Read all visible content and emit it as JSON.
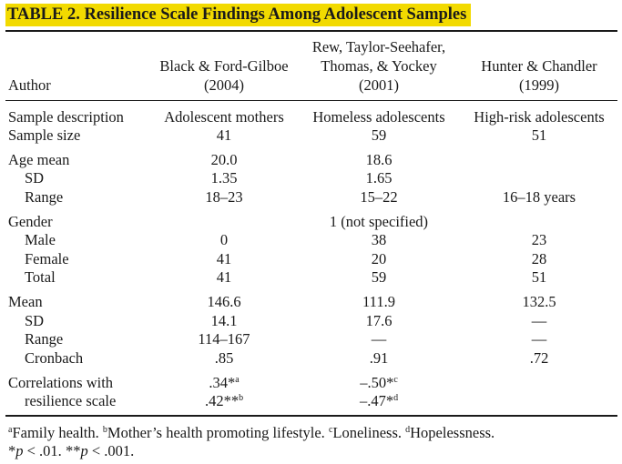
{
  "table": {
    "title": "TABLE 2.  Resilience Scale Findings Among Adolescent Samples",
    "header": {
      "author": "Author",
      "col1_l1": "Black & Ford-Gilboe",
      "col1_l2": "(2004)",
      "col2_l1": "Rew, Taylor-Seehafer,",
      "col2_l2": "Thomas, & Yockey",
      "col2_l3": "(2001)",
      "col3_l1": "Hunter & Chandler",
      "col3_l2": "(1999)"
    },
    "rows": {
      "sample_description": {
        "label": "Sample description",
        "c1": "Adolescent mothers",
        "c2": "Homeless adolescents",
        "c3": "High-risk adolescents"
      },
      "sample_size": {
        "label": "Sample size",
        "c1": "41",
        "c2": "59",
        "c3": "51"
      },
      "age_mean": {
        "label": "Age mean",
        "c1": "20.0",
        "c2": "18.6",
        "c3": ""
      },
      "age_sd": {
        "label": "SD",
        "c1": "1.35",
        "c2": "1.65",
        "c3": ""
      },
      "age_range": {
        "label": "Range",
        "c1": "18–23",
        "c2": "15–22",
        "c3": "16–18 years"
      },
      "gender": {
        "label": "Gender",
        "c1": "",
        "c2": "1 (not specified)",
        "c3": ""
      },
      "male": {
        "label": "Male",
        "c1": "0",
        "c2": "38",
        "c3": "23"
      },
      "female": {
        "label": "Female",
        "c1": "41",
        "c2": "20",
        "c3": "28"
      },
      "total": {
        "label": "Total",
        "c1": "41",
        "c2": "59",
        "c3": "51"
      },
      "mean": {
        "label": "Mean",
        "c1": "146.6",
        "c2": "111.9",
        "c3": "132.5"
      },
      "mean_sd": {
        "label": "SD",
        "c1": "14.1",
        "c2": "17.6",
        "c3": "—"
      },
      "mean_range": {
        "label": "Range",
        "c1": "114–167",
        "c2": "—",
        "c3": "—"
      },
      "cronbach": {
        "label": "Cronbach",
        "c1": ".85",
        "c2": ".91",
        "c3": ".72"
      },
      "correlations": {
        "label": "Correlations with",
        "c1": ".34*",
        "c1_sup": "a",
        "c2": "–.50*",
        "c2_sup": "c"
      },
      "resilience": {
        "label": "resilience scale",
        "c1": ".42**",
        "c1_sup": "b",
        "c2": "–.47*",
        "c2_sup": "d"
      }
    },
    "footnotes": {
      "a_mark": "a",
      "a_text": "Family health. ",
      "b_mark": "b",
      "b_text": "Mother’s health promoting lifestyle. ",
      "c_mark": "c",
      "c_text": "Loneliness. ",
      "d_mark": "d",
      "d_text": "Hopelessness.",
      "p1_star": "*",
      "p1_var": "p",
      "p1_rest": " < .01. ",
      "p2_star": "**",
      "p2_var": "p",
      "p2_rest": " < .001."
    }
  }
}
